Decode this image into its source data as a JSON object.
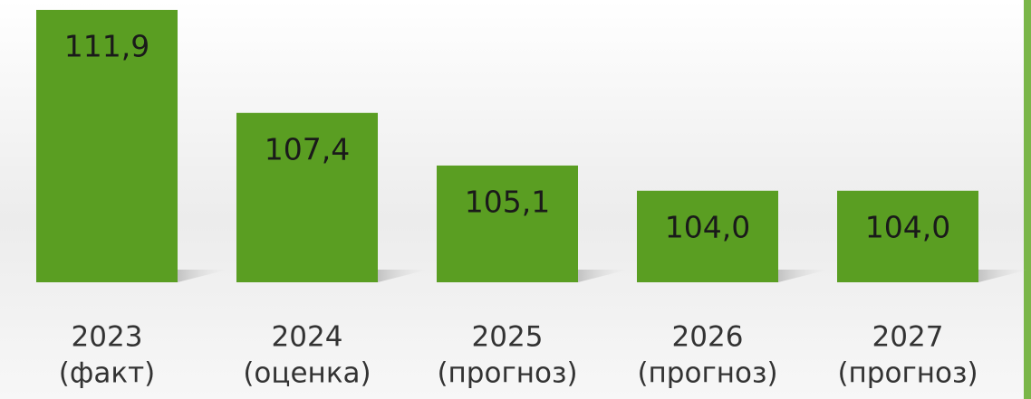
{
  "chart_data": {
    "type": "bar",
    "categories": [
      [
        "2023",
        "(факт)"
      ],
      [
        "2024",
        "(оценка)"
      ],
      [
        "2025",
        "(прогноз)"
      ],
      [
        "2026",
        "(прогноз)"
      ],
      [
        "2027",
        "(прогноз)"
      ]
    ],
    "values": [
      111.9,
      107.4,
      105.1,
      104.0,
      104.0
    ],
    "value_labels": [
      "111,9",
      "107,4",
      "105,1",
      "104,0",
      "104,0"
    ],
    "color": "#5a9e22",
    "ylim": [
      100,
      112
    ]
  }
}
